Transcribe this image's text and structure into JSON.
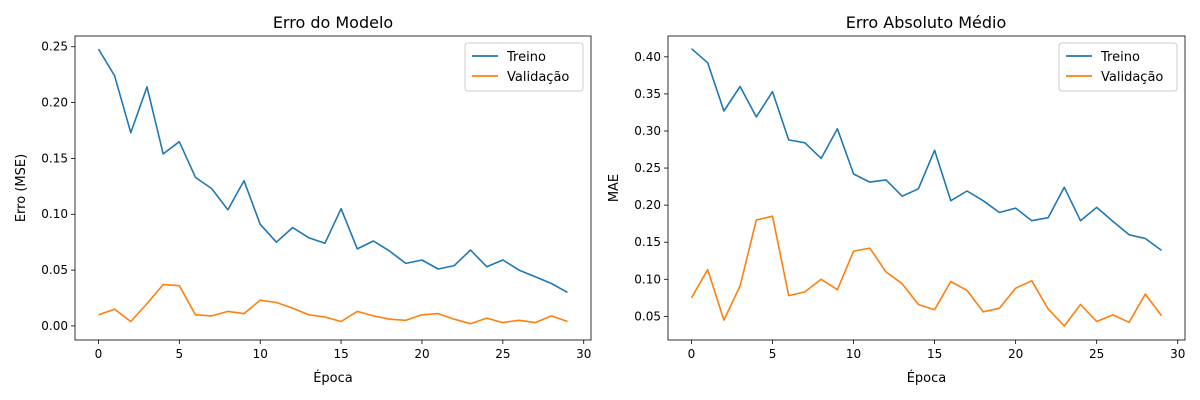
{
  "chart_data": [
    {
      "type": "line",
      "title": "Erro do Modelo",
      "xlabel": "Época",
      "ylabel": "Erro (MSE)",
      "xlim": [
        -1.45,
        30.45
      ],
      "ylim": [
        -0.0126,
        0.2596
      ],
      "xticks": [
        "0",
        "5",
        "10",
        "15",
        "20",
        "25",
        "30"
      ],
      "yticks": [
        "0.00",
        "0.05",
        "0.10",
        "0.15",
        "0.20",
        "0.25"
      ],
      "legend": "top-right",
      "x": [
        0,
        1,
        2,
        3,
        4,
        5,
        6,
        7,
        8,
        9,
        10,
        11,
        12,
        13,
        14,
        15,
        16,
        17,
        18,
        19,
        20,
        21,
        22,
        23,
        24,
        25,
        26,
        27,
        28,
        29
      ],
      "series": [
        {
          "name": "Treino",
          "color": "#1f77b4",
          "values": [
            0.248,
            0.224,
            0.173,
            0.214,
            0.154,
            0.165,
            0.133,
            0.123,
            0.104,
            0.13,
            0.091,
            0.075,
            0.088,
            0.079,
            0.074,
            0.105,
            0.069,
            0.076,
            0.067,
            0.056,
            0.059,
            0.051,
            0.054,
            0.068,
            0.053,
            0.059,
            0.05,
            0.044,
            0.038,
            0.03
          ]
        },
        {
          "name": "Validação",
          "color": "#ff7f0e",
          "values": [
            0.01,
            0.015,
            0.004,
            0.02,
            0.037,
            0.036,
            0.01,
            0.009,
            0.013,
            0.011,
            0.023,
            0.021,
            0.016,
            0.01,
            0.008,
            0.004,
            0.013,
            0.009,
            0.006,
            0.005,
            0.01,
            0.011,
            0.006,
            0.002,
            0.007,
            0.003,
            0.005,
            0.003,
            0.009,
            0.004
          ]
        }
      ]
    },
    {
      "type": "line",
      "title": "Erro Absoluto Médio",
      "xlabel": "Época",
      "ylabel": "MAE",
      "xlim": [
        -1.45,
        30.45
      ],
      "ylim": [
        0.0181,
        0.4281
      ],
      "xticks": [
        "0",
        "5",
        "10",
        "15",
        "20",
        "25",
        "30"
      ],
      "yticks": [
        "0.05",
        "0.10",
        "0.15",
        "0.20",
        "0.25",
        "0.30",
        "0.35",
        "0.40"
      ],
      "legend": "top-right",
      "x": [
        0,
        1,
        2,
        3,
        4,
        5,
        6,
        7,
        8,
        9,
        10,
        11,
        12,
        13,
        14,
        15,
        16,
        17,
        18,
        19,
        20,
        21,
        22,
        23,
        24,
        25,
        26,
        27,
        28,
        29
      ],
      "series": [
        {
          "name": "Treino",
          "color": "#1f77b4",
          "values": [
            0.411,
            0.392,
            0.327,
            0.36,
            0.319,
            0.353,
            0.288,
            0.284,
            0.263,
            0.303,
            0.242,
            0.231,
            0.234,
            0.212,
            0.222,
            0.274,
            0.206,
            0.219,
            0.206,
            0.19,
            0.196,
            0.179,
            0.183,
            0.224,
            0.179,
            0.197,
            0.178,
            0.16,
            0.155,
            0.139
          ]
        },
        {
          "name": "Validação",
          "color": "#ff7f0e",
          "values": [
            0.075,
            0.113,
            0.045,
            0.091,
            0.18,
            0.185,
            0.078,
            0.083,
            0.1,
            0.086,
            0.138,
            0.142,
            0.11,
            0.094,
            0.066,
            0.059,
            0.097,
            0.085,
            0.056,
            0.061,
            0.088,
            0.098,
            0.06,
            0.037,
            0.066,
            0.043,
            0.052,
            0.042,
            0.08,
            0.051
          ]
        }
      ]
    }
  ]
}
